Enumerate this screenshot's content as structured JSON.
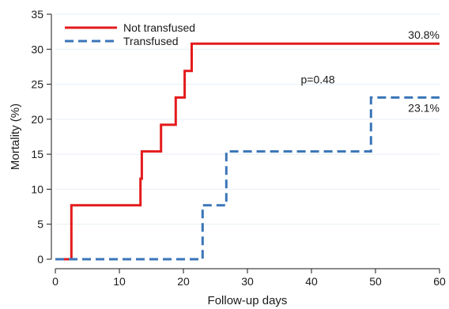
{
  "chart_data": {
    "type": "line",
    "step": true,
    "xlabel": "Follow-up days",
    "ylabel": "Mortality (%)",
    "xlim": [
      0,
      60
    ],
    "ylim": [
      0,
      35
    ],
    "xticks": [
      0,
      10,
      20,
      30,
      40,
      50,
      60
    ],
    "yticks": [
      0,
      5,
      10,
      15,
      20,
      25,
      30,
      35
    ],
    "grid": "horizontal",
    "legend_position": "top-left",
    "series": [
      {
        "name": "Not transfused",
        "color": "#e41a1c",
        "style": "solid",
        "x": [
          0,
          2.5,
          2.5,
          13.3,
          13.3,
          13.5,
          13.5,
          16.5,
          16.5,
          18.8,
          18.8,
          20.2,
          20.2,
          21.3,
          21.3,
          60
        ],
        "y": [
          0,
          0,
          7.7,
          7.7,
          11.5,
          11.5,
          15.4,
          15.4,
          19.2,
          19.2,
          23.1,
          23.1,
          26.9,
          26.9,
          30.8,
          30.8
        ]
      },
      {
        "name": "Transfused",
        "color": "#3a75b8",
        "style": "dashed",
        "x": [
          0,
          23,
          23,
          26.7,
          26.7,
          49.3,
          49.3,
          60
        ],
        "y": [
          0,
          0,
          7.7,
          7.7,
          15.4,
          15.4,
          23.1,
          23.1
        ]
      }
    ],
    "annotations": [
      {
        "text": "30.8%",
        "x": 60,
        "y": 30.8,
        "anchor": "end",
        "position": "above"
      },
      {
        "text": "23.1%",
        "x": 60,
        "y": 23.1,
        "anchor": "end",
        "position": "below"
      },
      {
        "text": "p=0.48",
        "x": 41,
        "y": 25.7,
        "anchor": "middle",
        "position": "on"
      }
    ]
  }
}
